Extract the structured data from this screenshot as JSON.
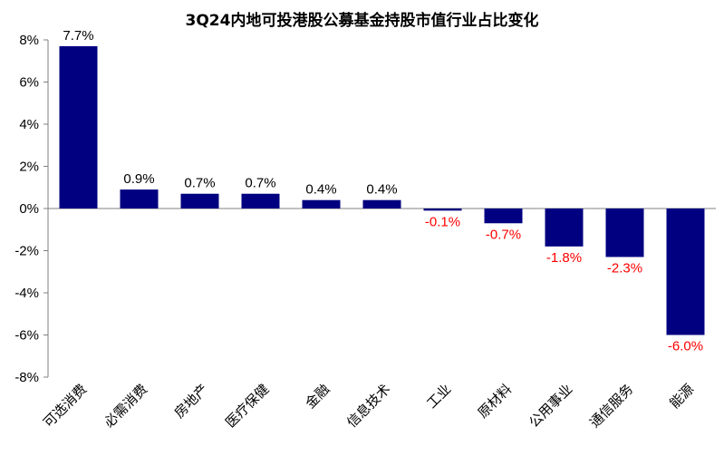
{
  "chart_data": {
    "type": "bar",
    "title": "3Q24内地可投港股公募基金持股市值行业占比变化",
    "xlabel": "",
    "ylabel": "",
    "categories": [
      "可选消费",
      "必需消费",
      "房地产",
      "医疗保健",
      "金融",
      "信息技术",
      "工业",
      "原材料",
      "公用事业",
      "通信服务",
      "能源"
    ],
    "values": [
      7.7,
      0.9,
      0.7,
      0.7,
      0.4,
      0.4,
      -0.1,
      -0.7,
      -1.8,
      -2.3,
      -6.0
    ],
    "value_labels": [
      "7.7%",
      "0.9%",
      "0.7%",
      "0.7%",
      "0.4%",
      "0.4%",
      "-0.1%",
      "-0.7%",
      "-1.8%",
      "-2.3%",
      "-6.0%"
    ],
    "ylim": [
      -8,
      8
    ],
    "yticks": [
      8,
      6,
      4,
      2,
      0,
      -2,
      -4,
      -6,
      -8
    ],
    "ytick_labels": [
      "8%",
      "6%",
      "4%",
      "2%",
      "0%",
      "-2%",
      "-4%",
      "-6%",
      "-8%"
    ],
    "grid": false,
    "legend": "none",
    "colors": {
      "bar": "#000080",
      "positive_label": "#000000",
      "negative_label": "#ff0000",
      "axis": "#808080"
    }
  }
}
